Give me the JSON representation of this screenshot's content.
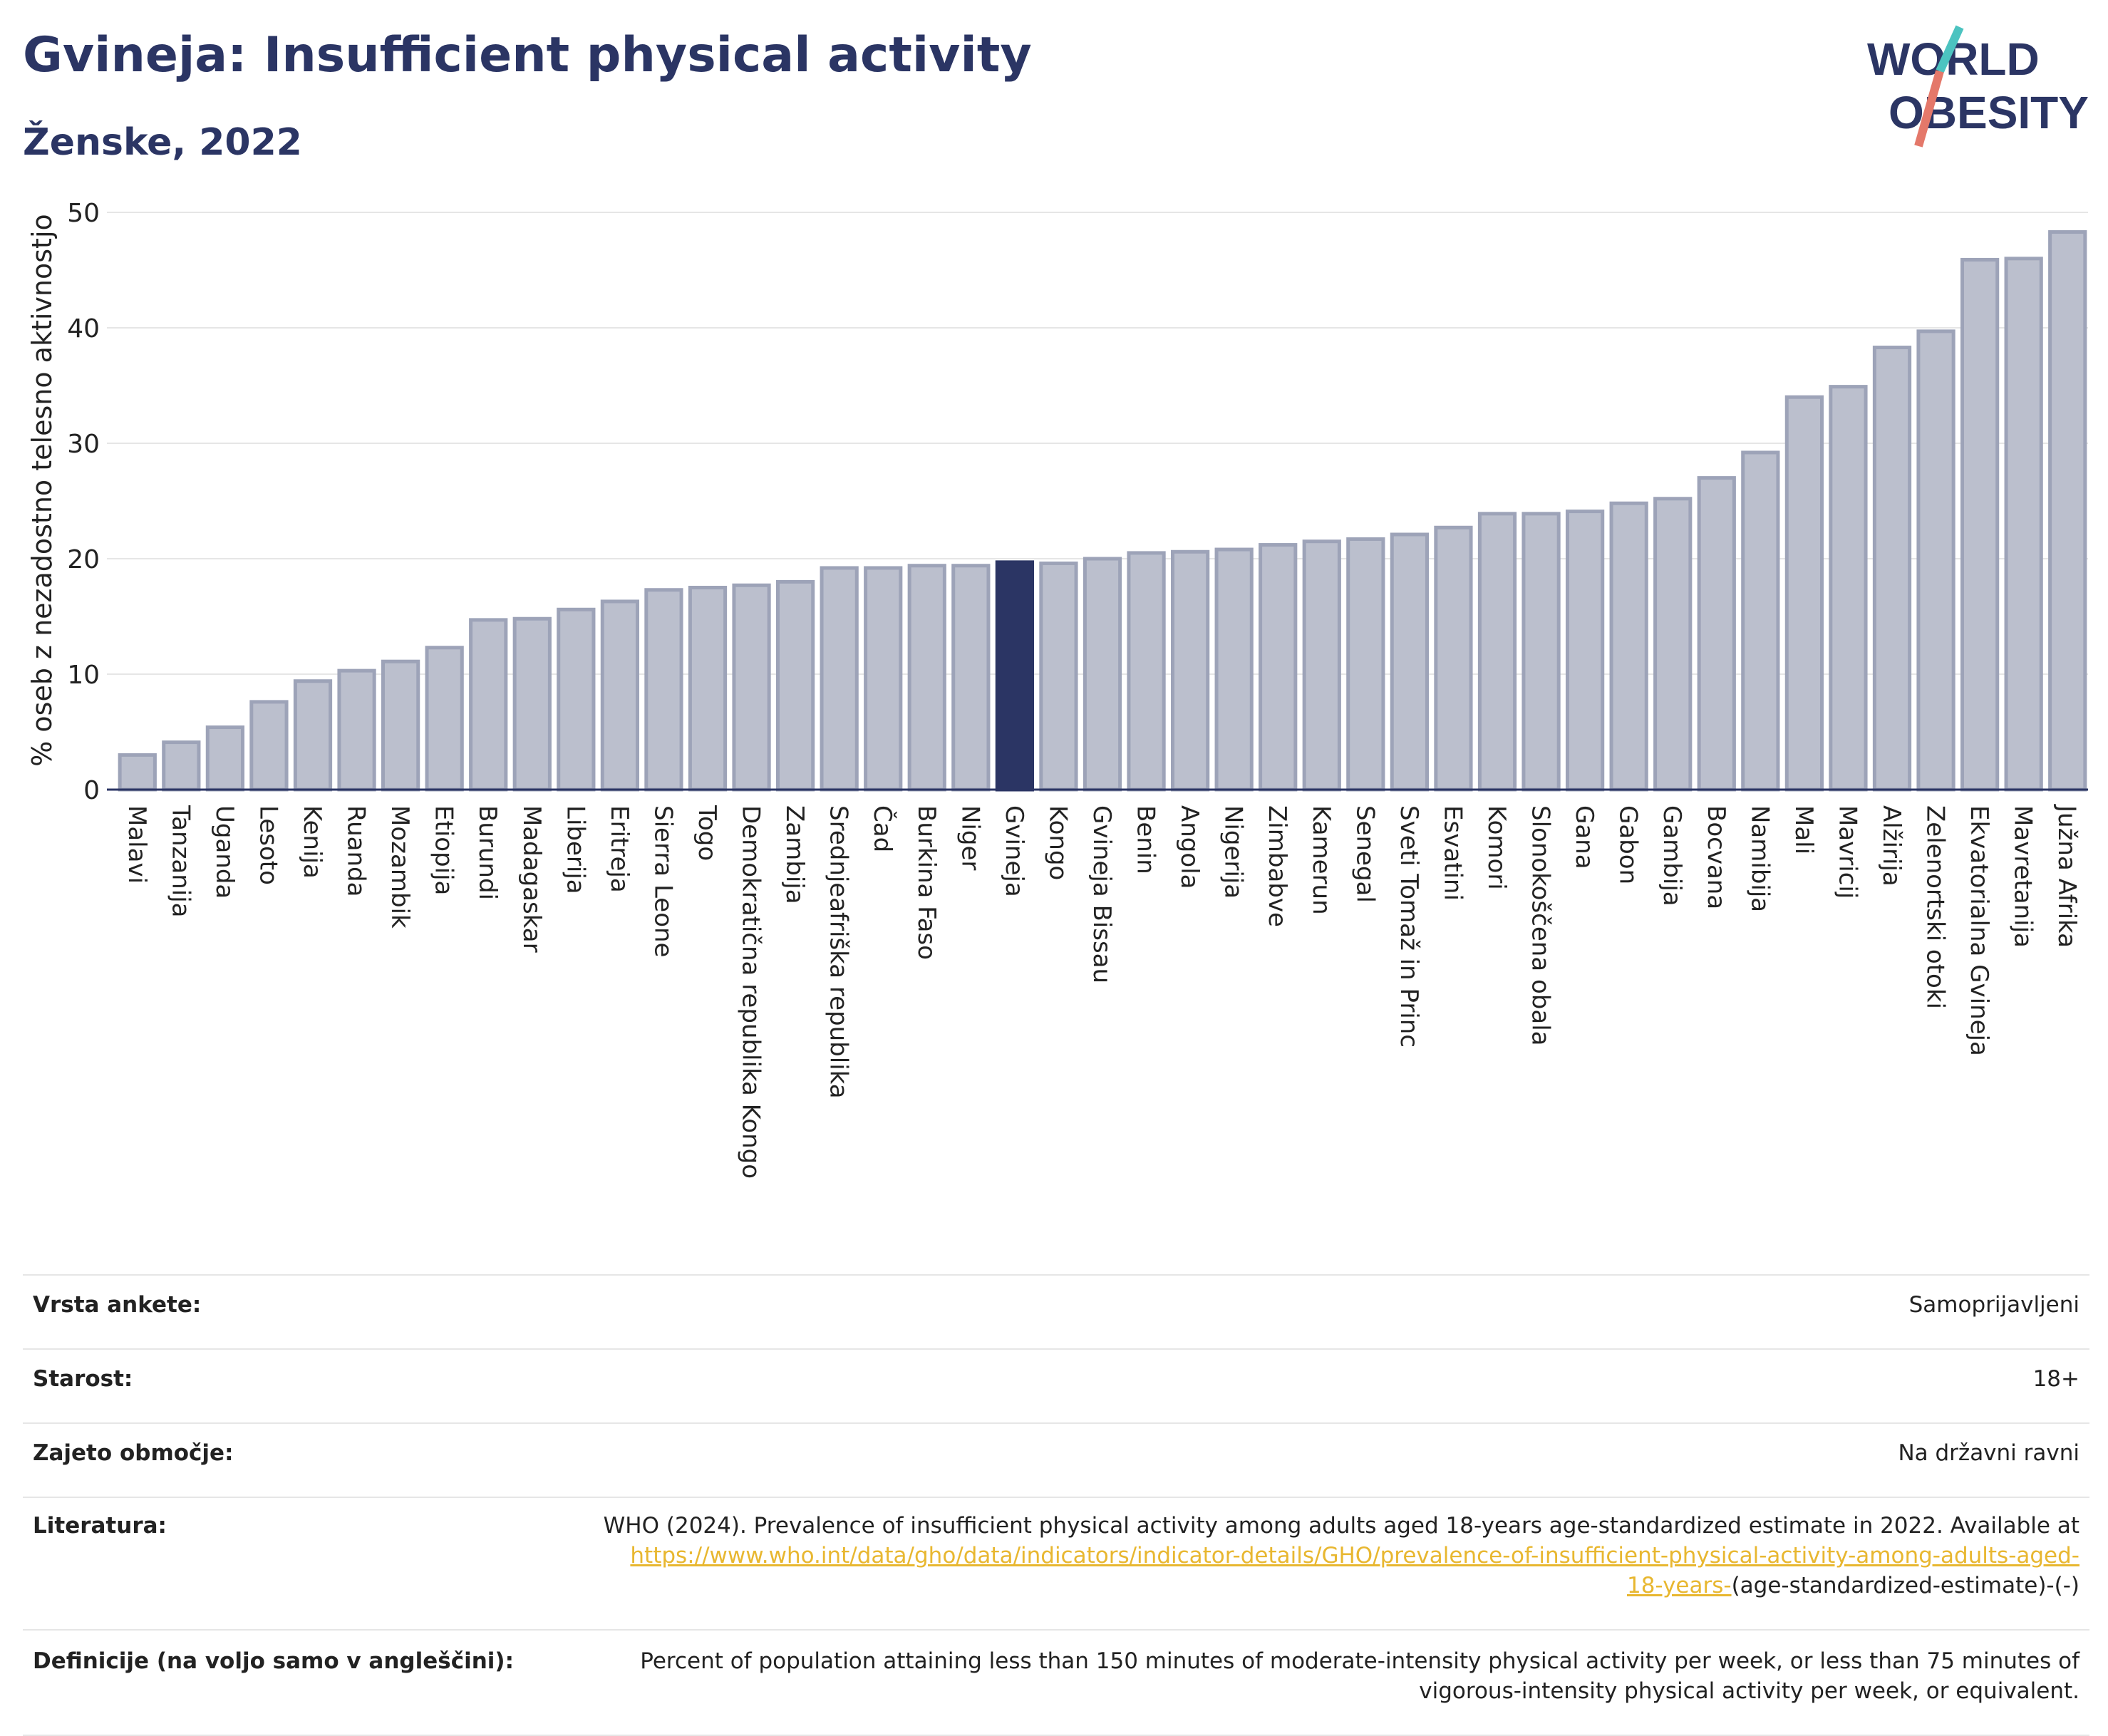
{
  "header": {
    "title": "Gvineja: Insufficient physical activity",
    "subtitle": "Ženske, 2022"
  },
  "logo": {
    "line1": "WORLD",
    "line2": "OBESITY",
    "slash_colors": [
      "#4cc3c0",
      "#e4786a"
    ],
    "text_color": "#2b3564"
  },
  "colors": {
    "bar": "#bbbfcd",
    "bar_edge": "#9da3b8",
    "highlight": "#2b3564",
    "grid": "#e6e6e6",
    "axis_text": "#222222"
  },
  "chart_data": {
    "type": "bar",
    "ylabel": "% oseb z nezadostno telesno aktivnostjo",
    "ylim": [
      0,
      50
    ],
    "yticks": [
      0,
      10,
      20,
      30,
      40,
      50
    ],
    "grid": true,
    "highlight": "Gvineja",
    "categories": [
      "Malavi",
      "Tanzanija",
      "Uganda",
      "Lesoto",
      "Kenija",
      "Ruanda",
      "Mozambik",
      "Etiopija",
      "Burundi",
      "Madagaskar",
      "Liberija",
      "Eritreja",
      "Sierra Leone",
      "Togo",
      "Demokratična republika Kongo",
      "Zambija",
      "Srednjeafriška republika",
      "Čad",
      "Burkina Faso",
      "Niger",
      "Gvineja",
      "Kongo",
      "Gvineja Bissau",
      "Benin",
      "Angola",
      "Nigerija",
      "Zimbabve",
      "Kamerun",
      "Senegal",
      "Sveti Tomaž in Princ",
      "Esvatini",
      "Komori",
      "Slonokoščena obala",
      "Gana",
      "Gabon",
      "Gambija",
      "Bocvana",
      "Namibija",
      "Mali",
      "Mavricij",
      "Alžirija",
      "Zelenortski otoki",
      "Ekvatorialna Gvineja",
      "Mavretanija",
      "Južna Afrika"
    ],
    "values": [
      3.0,
      4.1,
      5.4,
      7.6,
      9.4,
      10.3,
      11.1,
      12.3,
      14.7,
      14.8,
      15.6,
      16.3,
      17.3,
      17.5,
      17.7,
      18.0,
      19.2,
      19.2,
      19.4,
      19.4,
      19.7,
      19.6,
      20.0,
      20.5,
      20.6,
      20.8,
      21.2,
      21.5,
      21.7,
      22.1,
      22.7,
      23.9,
      23.9,
      24.1,
      24.8,
      25.2,
      27.0,
      29.2,
      34.0,
      34.9,
      38.3,
      39.7,
      45.9,
      46.0,
      48.3
    ]
  },
  "meta": [
    {
      "label": "Vrsta ankete:",
      "value": "Samoprijavljeni"
    },
    {
      "label": "Starost:",
      "value": "18+"
    },
    {
      "label": "Zajeto območje:",
      "value": "Na državni ravni"
    },
    {
      "label": "Literatura:",
      "value": "WHO (2024). Prevalence of insufficient physical activity among adults aged 18-years age-standardized estimate in 2022. Available at",
      "link": "https://www.who.int/data/gho/data/indicators/indicator-details/GHO/prevalence-of-insufficient-physical-activity-among-adults-aged-18-years-",
      "tail": "(age-standardized-estimate)-(-)"
    },
    {
      "label": "Definicije (na voljo samo v angleščini):",
      "value": "Percent of population attaining less than 150 minutes of moderate-intensity physical activity per week, or less than 75 minutes of vigorous-intensity physical activity per week, or equivalent."
    }
  ]
}
